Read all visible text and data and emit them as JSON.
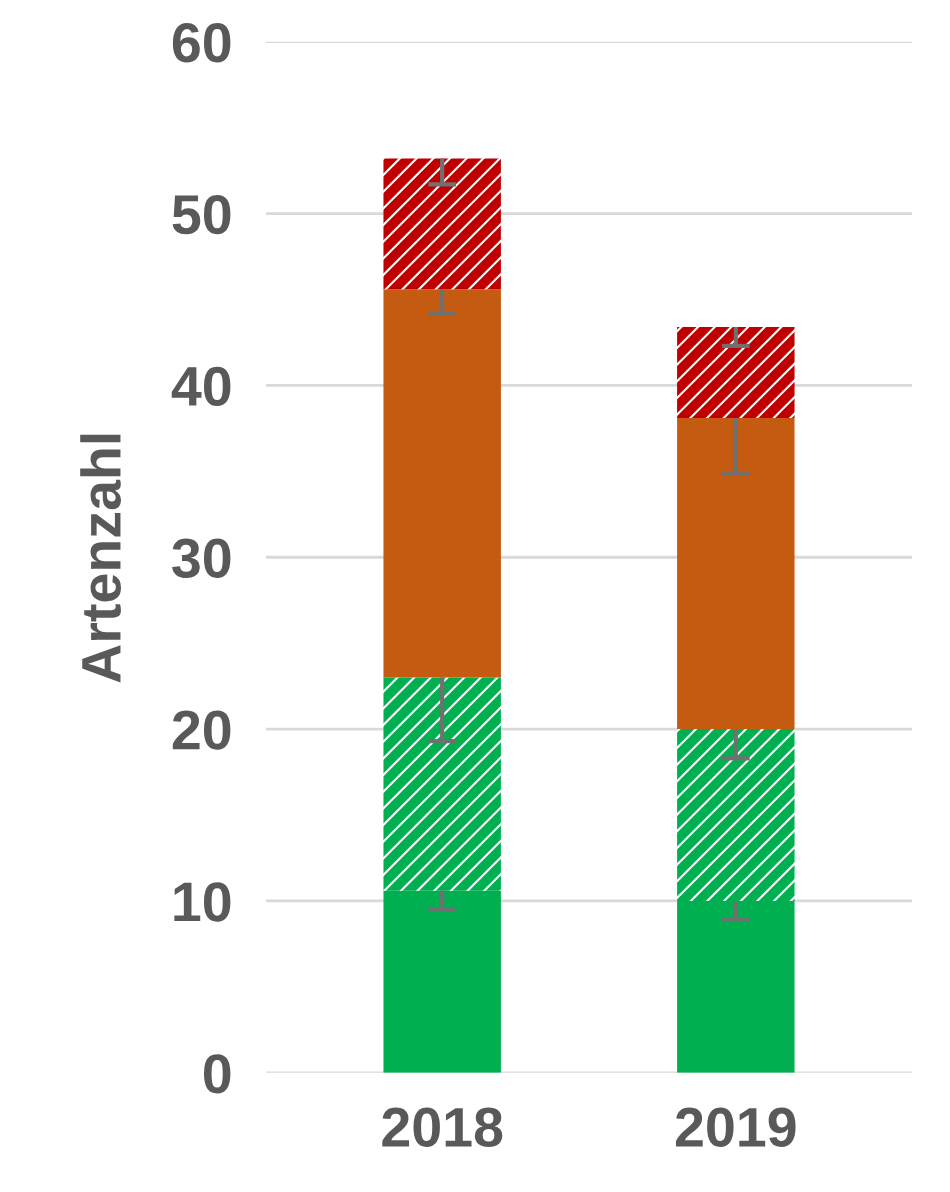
{
  "chart_data": {
    "type": "bar",
    "stacked": true,
    "ylabel": "Artenzahl",
    "categories": [
      "2018",
      "2019"
    ],
    "series": [
      {
        "color": "#00b050",
        "values": [
          10.6,
          10.0
        ],
        "errors": [
          [
            9.5,
            10.6
          ],
          [
            8.9,
            10.0
          ]
        ]
      },
      {
        "color": "#00b050",
        "values": [
          12.4,
          10.0
        ],
        "errors": [
          [
            19.3,
            23.0
          ],
          [
            18.3,
            20.0
          ]
        ]
      },
      {
        "color": "#c55a11",
        "values": [
          22.6,
          18.1
        ],
        "errors": [
          [
            44.2,
            45.6
          ],
          [
            34.9,
            38.1
          ]
        ]
      },
      {
        "color": "#c00000",
        "values": [
          7.6,
          5.3
        ],
        "errors": [
          [
            51.7,
            53.2
          ],
          [
            42.3,
            43.4
          ]
        ]
      }
    ],
    "ylim": [
      0,
      60
    ],
    "yticks": [
      0,
      10,
      20,
      30,
      40,
      50,
      60
    ],
    "grid": "y"
  }
}
